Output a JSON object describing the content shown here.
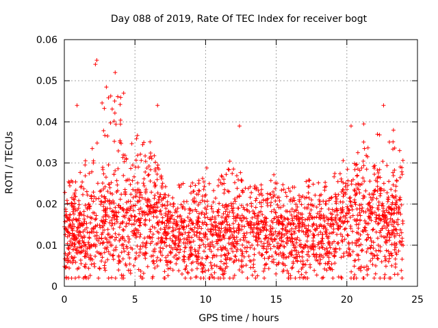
{
  "chart_data": {
    "type": "scatter",
    "title": "Day 088 of 2019, Rate Of TEC Index for receiver bogt",
    "xlabel": "GPS time / hours",
    "ylabel": "ROTI / TECUs",
    "xlim": [
      0,
      25
    ],
    "ylim": [
      0,
      0.06
    ],
    "xticks": [
      0,
      5,
      10,
      15,
      20,
      25
    ],
    "xtick_labels": [
      "0",
      "5",
      "10",
      "15",
      "20",
      "25"
    ],
    "yticks": [
      0,
      0.01,
      0.02,
      0.03,
      0.04,
      0.05,
      0.06
    ],
    "ytick_labels": [
      "0",
      "0.01",
      "0.02",
      "0.03",
      "0.04",
      "0.05",
      "0.06"
    ],
    "grid": true,
    "marker": "+",
    "series_color": "#ff0000",
    "data_range_x": [
      0,
      24
    ],
    "envelope": {
      "hours": [
        0,
        1,
        2,
        3,
        4,
        5,
        6,
        7,
        8,
        9,
        10,
        11,
        12,
        13,
        14,
        15,
        16,
        17,
        18,
        19,
        20,
        21,
        22,
        23,
        24
      ],
      "typical_roti": [
        0.011,
        0.012,
        0.013,
        0.015,
        0.016,
        0.014,
        0.015,
        0.013,
        0.011,
        0.012,
        0.012,
        0.011,
        0.012,
        0.013,
        0.012,
        0.012,
        0.012,
        0.012,
        0.012,
        0.013,
        0.015,
        0.016,
        0.016,
        0.015,
        0.014
      ],
      "upper_roti": [
        0.025,
        0.027,
        0.035,
        0.05,
        0.046,
        0.037,
        0.036,
        0.026,
        0.026,
        0.027,
        0.029,
        0.028,
        0.032,
        0.026,
        0.025,
        0.028,
        0.025,
        0.026,
        0.026,
        0.027,
        0.033,
        0.036,
        0.038,
        0.036,
        0.034
      ]
    },
    "notable_points": [
      {
        "x": 2.3,
        "y": 0.055
      },
      {
        "x": 2.2,
        "y": 0.054
      },
      {
        "x": 3.6,
        "y": 0.052
      },
      {
        "x": 4.2,
        "y": 0.047
      },
      {
        "x": 0.9,
        "y": 0.044
      },
      {
        "x": 6.6,
        "y": 0.044
      },
      {
        "x": 22.6,
        "y": 0.044
      },
      {
        "x": 12.4,
        "y": 0.039
      },
      {
        "x": 20.3,
        "y": 0.039
      },
      {
        "x": 21.2,
        "y": 0.0395
      },
      {
        "x": 23.3,
        "y": 0.038
      }
    ]
  }
}
